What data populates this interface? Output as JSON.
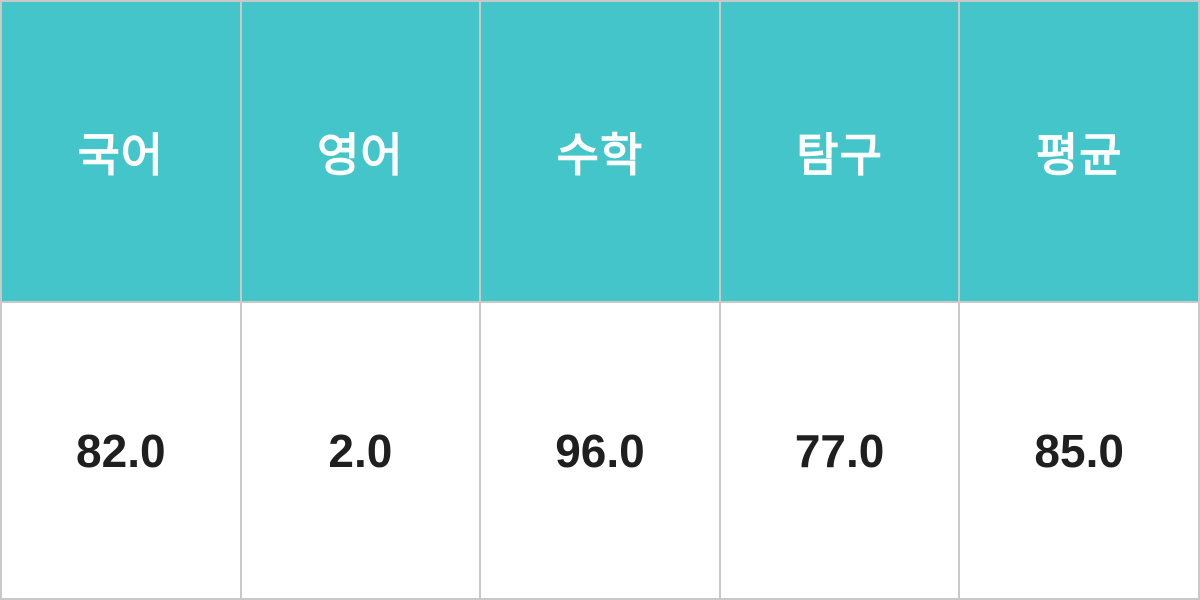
{
  "table": {
    "headers": [
      "국어",
      "영어",
      "수학",
      "탐구",
      "평균"
    ],
    "values": [
      "82.0",
      "2.0",
      "96.0",
      "77.0",
      "85.0"
    ]
  },
  "colors": {
    "header_bg": "#43c5c9",
    "header_text": "#ffffff",
    "body_bg": "#ffffff",
    "body_text": "#1f1f1f",
    "border": "#c9c9c9"
  },
  "chart_data": {
    "type": "table",
    "columns": [
      "국어",
      "영어",
      "수학",
      "탐구",
      "평균"
    ],
    "rows": [
      [
        82.0,
        2.0,
        96.0,
        77.0,
        85.0
      ]
    ],
    "title": "",
    "layout": "single header row (teal) + single value row (white), 5 equal columns, light gray grid"
  }
}
